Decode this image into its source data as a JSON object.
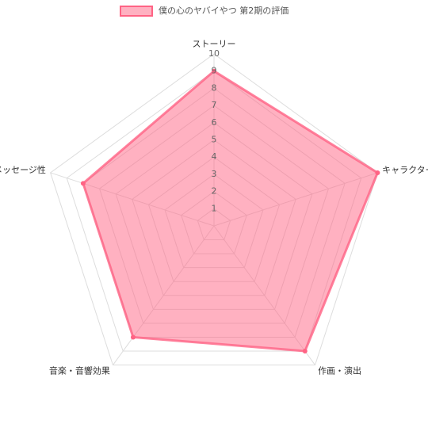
{
  "chart_data": {
    "type": "radar",
    "categories": [
      "ストーリー",
      "キャラクター",
      "作画・演出",
      "音楽・音響効果",
      "メッセージ性"
    ],
    "series": [
      {
        "name": "僕の心のヤバイやつ 第2期の評価",
        "color": "#ff6384",
        "values": [
          9,
          10,
          9,
          8,
          8
        ]
      }
    ],
    "ylim": [
      0,
      10
    ],
    "yticks": [
      1,
      2,
      3,
      4,
      5,
      6,
      7,
      8,
      9,
      10
    ],
    "grid": true,
    "legend": "top"
  }
}
